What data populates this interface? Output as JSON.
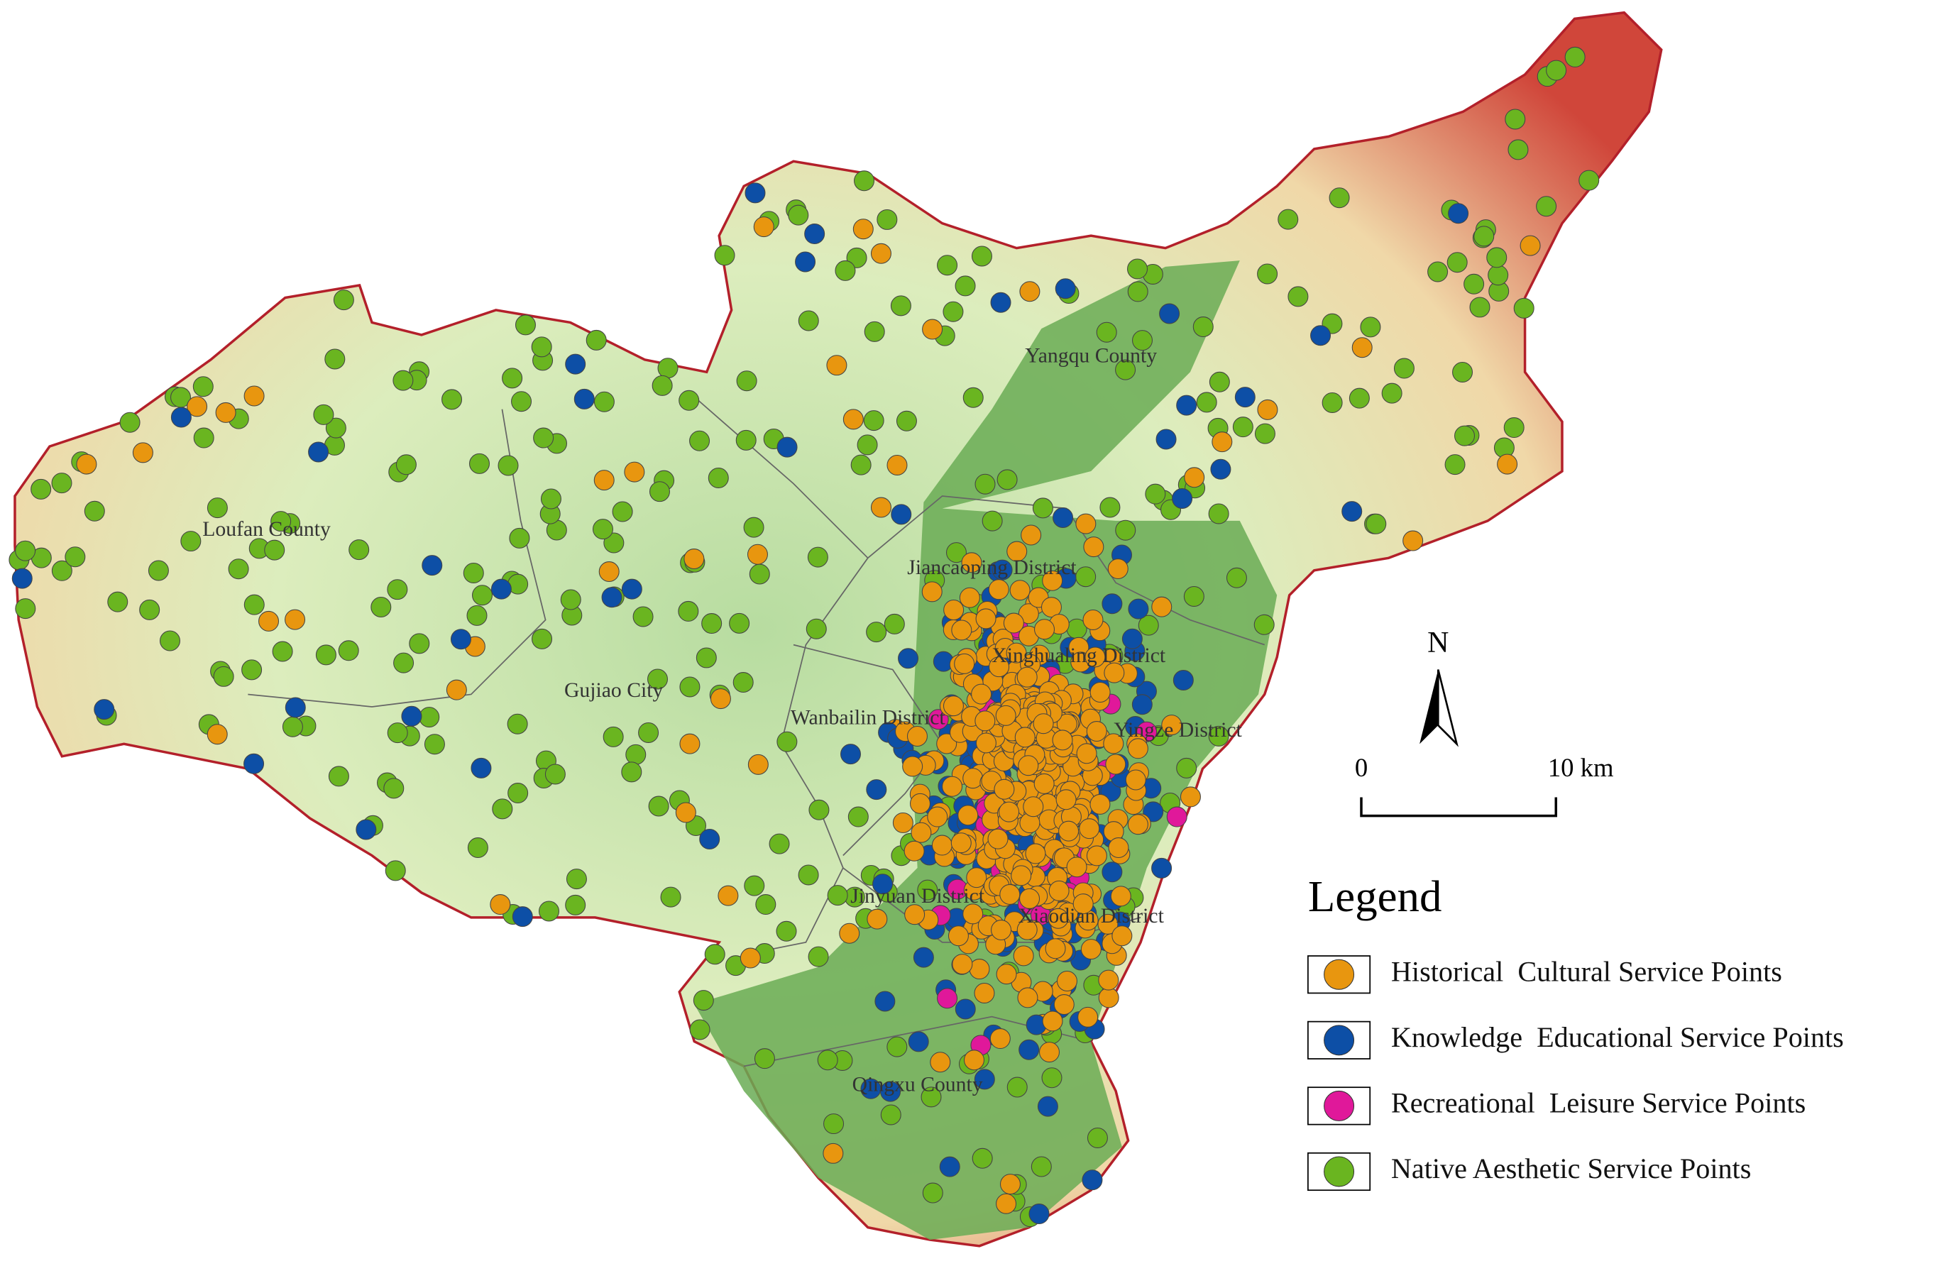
{
  "place_labels": [
    "Loufan County",
    "Yangqu County",
    "Gujiao City",
    "Wanbailin District",
    "Jiancaoping District",
    "Xinghualing District",
    "Yingze District",
    "Jinyuan District",
    "Xiaodian District",
    "Qingxu County"
  ],
  "north_arrow": "N",
  "scale_bar": {
    "start": "0",
    "end": "10 km"
  },
  "legend": {
    "title": "Legend",
    "items": [
      {
        "label": "Historical  Cultural Service Points",
        "color": "#e8960f"
      },
      {
        "label": "Knowledge  Educational Service Points",
        "color": "#0d4fa6"
      },
      {
        "label": "Recreational  Leisure Service Points",
        "color": "#e0189a"
      },
      {
        "label": "Native Aesthetic Service Points",
        "color": "#6ab520"
      }
    ]
  }
}
